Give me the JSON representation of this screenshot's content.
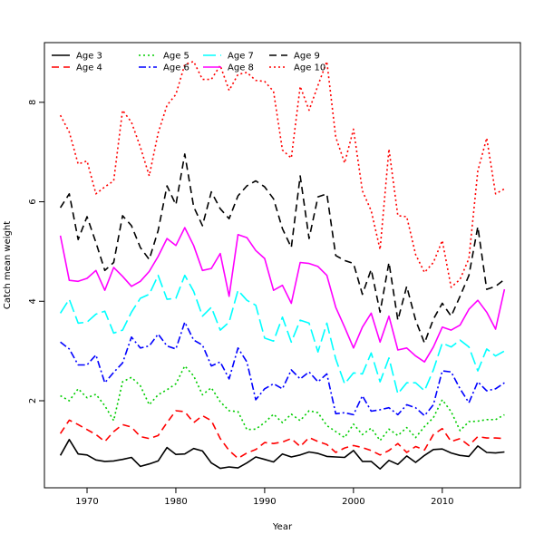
{
  "chart_data": {
    "type": "line",
    "xlabel": "Year",
    "ylabel": "Catch mean weight",
    "xlim": [
      1965.2,
      2018.8
    ],
    "ylim": [
      0.25,
      9.2
    ],
    "x_ticks": [
      1970,
      1980,
      1990,
      2000,
      2010
    ],
    "y_ticks": [
      2,
      4,
      6,
      8
    ],
    "legend_position": "top-left",
    "grid": false,
    "x": [
      1967,
      1968,
      1969,
      1970,
      1971,
      1972,
      1973,
      1974,
      1975,
      1976,
      1977,
      1978,
      1979,
      1980,
      1981,
      1982,
      1983,
      1984,
      1985,
      1986,
      1987,
      1988,
      1989,
      1990,
      1991,
      1992,
      1993,
      1994,
      1995,
      1996,
      1997,
      1998,
      1999,
      2000,
      2001,
      2002,
      2003,
      2004,
      2005,
      2006,
      2007,
      2008,
      2009,
      2010,
      2011,
      2012,
      2013,
      2014,
      2015,
      2016,
      2017
    ],
    "series": [
      {
        "name": "Age 3",
        "color": "#000000",
        "dash": "solid",
        "values": [
          0.9,
          1.22,
          0.93,
          0.91,
          0.81,
          0.78,
          0.79,
          0.82,
          0.86,
          0.68,
          0.73,
          0.79,
          1.06,
          0.92,
          0.93,
          1.04,
          0.99,
          0.75,
          0.64,
          0.67,
          0.65,
          0.75,
          0.87,
          0.82,
          0.77,
          0.93,
          0.87,
          0.91,
          0.97,
          0.94,
          0.88,
          0.87,
          0.86,
          1.0,
          0.78,
          0.78,
          0.63,
          0.8,
          0.72,
          0.89,
          0.76,
          0.9,
          1.02,
          1.03,
          0.95,
          0.9,
          0.88,
          1.09,
          0.96,
          0.95,
          0.97
        ]
      },
      {
        "name": "Age 4",
        "color": "#ff0000",
        "dash": "8,5",
        "values": [
          1.34,
          1.61,
          1.52,
          1.42,
          1.32,
          1.18,
          1.38,
          1.52,
          1.47,
          1.28,
          1.24,
          1.3,
          1.56,
          1.8,
          1.78,
          1.56,
          1.7,
          1.6,
          1.24,
          1.0,
          0.84,
          0.95,
          1.02,
          1.16,
          1.14,
          1.17,
          1.24,
          1.08,
          1.26,
          1.18,
          1.12,
          0.96,
          1.05,
          1.1,
          1.06,
          1.0,
          0.91,
          1.0,
          1.14,
          0.96,
          1.08,
          1.01,
          1.32,
          1.44,
          1.18,
          1.24,
          1.1,
          1.28,
          1.25,
          1.25,
          1.24
        ]
      },
      {
        "name": "Age 5",
        "color": "#00cd00",
        "dash": "2,3",
        "values": [
          2.1,
          2.0,
          2.24,
          2.06,
          2.13,
          1.9,
          1.6,
          2.38,
          2.47,
          2.3,
          1.92,
          2.12,
          2.22,
          2.34,
          2.7,
          2.5,
          2.12,
          2.26,
          1.98,
          1.8,
          1.78,
          1.42,
          1.43,
          1.56,
          1.73,
          1.56,
          1.73,
          1.6,
          1.8,
          1.76,
          1.5,
          1.38,
          1.26,
          1.53,
          1.32,
          1.45,
          1.2,
          1.43,
          1.3,
          1.46,
          1.26,
          1.48,
          1.66,
          2.02,
          1.78,
          1.4,
          1.58,
          1.59,
          1.62,
          1.62,
          1.72
        ]
      },
      {
        "name": "Age 6",
        "color": "#0000ff",
        "dash": "8,3,2,3",
        "values": [
          3.18,
          3.04,
          2.72,
          2.72,
          2.92,
          2.36,
          2.57,
          2.76,
          3.28,
          3.06,
          3.1,
          3.34,
          3.1,
          3.04,
          3.58,
          3.22,
          3.12,
          2.7,
          2.78,
          2.44,
          3.06,
          2.78,
          2.02,
          2.24,
          2.34,
          2.24,
          2.62,
          2.44,
          2.58,
          2.38,
          2.54,
          1.74,
          1.76,
          1.72,
          2.1,
          1.79,
          1.82,
          1.86,
          1.72,
          1.92,
          1.86,
          1.7,
          1.92,
          2.6,
          2.58,
          2.24,
          1.96,
          2.38,
          2.2,
          2.24,
          2.36
        ]
      },
      {
        "name": "Age 7",
        "color": "#00ffff",
        "dash": "14,5",
        "values": [
          3.76,
          4.04,
          3.56,
          3.58,
          3.74,
          3.8,
          3.36,
          3.42,
          3.78,
          4.06,
          4.14,
          4.52,
          4.04,
          4.06,
          4.52,
          4.2,
          3.7,
          3.88,
          3.42,
          3.58,
          4.22,
          4.02,
          3.92,
          3.26,
          3.2,
          3.68,
          3.18,
          3.62,
          3.56,
          2.98,
          3.56,
          2.84,
          2.34,
          2.56,
          2.54,
          2.96,
          2.38,
          2.86,
          2.14,
          2.36,
          2.36,
          2.2,
          2.62,
          3.16,
          3.08,
          3.22,
          3.08,
          2.6,
          3.04,
          2.9,
          3.0
        ]
      },
      {
        "name": "Age 8",
        "color": "#ff00ff",
        "dash": "solid",
        "values": [
          5.32,
          4.42,
          4.4,
          4.46,
          4.62,
          4.22,
          4.68,
          4.5,
          4.3,
          4.4,
          4.6,
          4.9,
          5.26,
          5.12,
          5.48,
          5.12,
          4.62,
          4.66,
          4.96,
          4.1,
          5.34,
          5.28,
          5.02,
          4.86,
          4.22,
          4.32,
          3.96,
          4.78,
          4.76,
          4.7,
          4.52,
          3.88,
          3.48,
          3.06,
          3.48,
          3.76,
          3.18,
          3.7,
          3.02,
          3.06,
          2.9,
          2.78,
          3.08,
          3.48,
          3.42,
          3.52,
          3.84,
          4.02,
          3.78,
          3.44,
          4.24
        ]
      },
      {
        "name": "Age 9",
        "color": "#000000",
        "dash": "8,5",
        "values": [
          5.88,
          6.16,
          5.24,
          5.7,
          5.18,
          4.62,
          4.78,
          5.72,
          5.52,
          5.08,
          4.84,
          5.42,
          6.32,
          5.94,
          6.96,
          5.9,
          5.52,
          6.2,
          5.86,
          5.66,
          6.12,
          6.32,
          6.42,
          6.3,
          6.06,
          5.46,
          5.08,
          6.52,
          5.26,
          6.1,
          6.16,
          4.92,
          4.82,
          4.76,
          4.14,
          4.64,
          3.78,
          4.78,
          3.62,
          4.3,
          3.62,
          3.16,
          3.64,
          3.96,
          3.7,
          4.1,
          4.52,
          5.5,
          4.24,
          4.3,
          4.44
        ]
      },
      {
        "name": "Age 10",
        "color": "#ff0000",
        "dash": "2,3",
        "values": [
          7.74,
          7.4,
          6.76,
          6.82,
          6.16,
          6.3,
          6.42,
          7.84,
          7.6,
          7.1,
          6.52,
          7.38,
          7.94,
          8.16,
          8.76,
          8.82,
          8.46,
          8.46,
          8.74,
          8.24,
          8.56,
          8.6,
          8.44,
          8.42,
          8.22,
          7.04,
          6.88,
          8.32,
          7.84,
          8.34,
          8.82,
          7.3,
          6.78,
          7.46,
          6.22,
          5.82,
          5.04,
          7.06,
          5.72,
          5.7,
          4.94,
          4.58,
          4.78,
          5.22,
          4.28,
          4.44,
          4.86,
          6.62,
          7.28,
          6.16,
          6.26
        ]
      }
    ]
  }
}
